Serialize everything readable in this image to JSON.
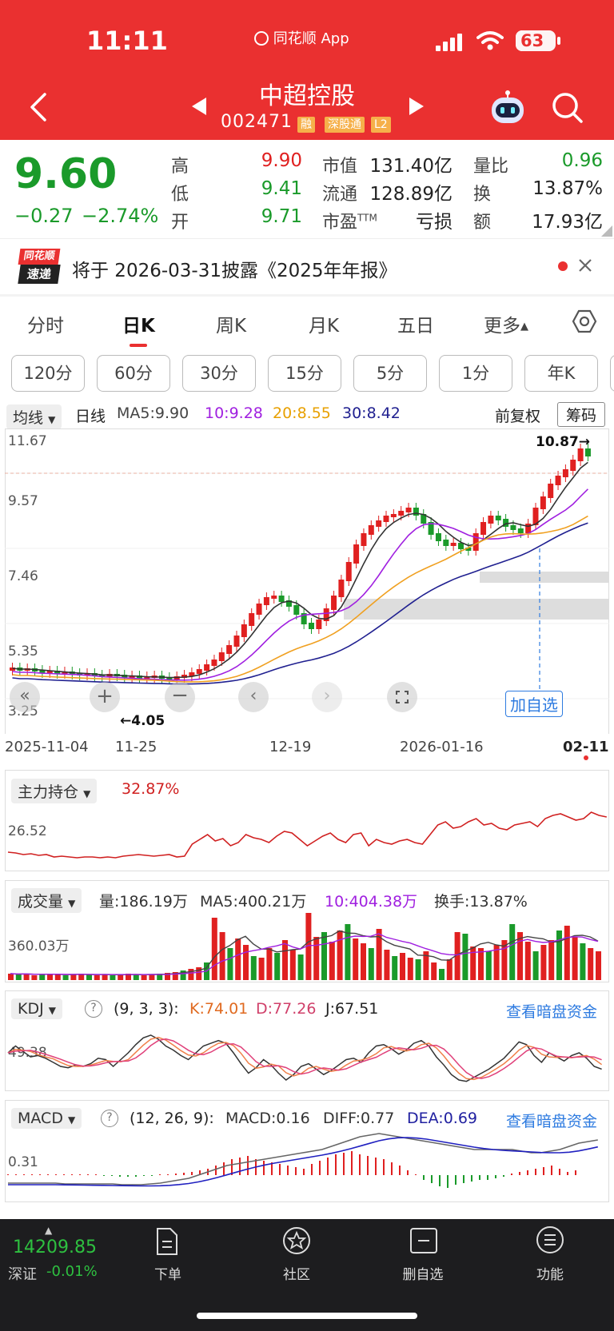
{
  "status_bar": {
    "time": "11:11",
    "app_label": "同花顺 App",
    "battery": "63"
  },
  "header": {
    "stock_name": "中超控股",
    "stock_code": "002471",
    "tags": [
      "融",
      "深股通",
      "L2"
    ]
  },
  "quote": {
    "price": "9.60",
    "change": "−0.27",
    "change_pct": "−2.74%",
    "high_label": "高",
    "high": "9.90",
    "low_label": "低",
    "low": "9.41",
    "open_label": "开",
    "open": "9.71",
    "mktcap_label": "市值",
    "mktcap": "131.40亿",
    "float_label": "流通",
    "float": "128.89亿",
    "pe_label": "市盈",
    "pe_sup": "TTM",
    "pe": "亏损",
    "volratio_label": "量比",
    "volratio": "0.96",
    "turnover_label": "换",
    "turnover": "13.87%",
    "amount_label": "额",
    "amount": "17.93亿"
  },
  "notice": {
    "logo_top": "同花顺",
    "logo_bottom": "速递",
    "text": "将于 2026-03-31披露《2025年年报》"
  },
  "tabs": [
    "分时",
    "日K",
    "周K",
    "月K",
    "五日",
    "更多"
  ],
  "intervals": [
    "120分",
    "60分",
    "30分",
    "15分",
    "5分",
    "1分",
    "年K"
  ],
  "kline": {
    "indicator_select": "均线",
    "period": "日线",
    "ma5": "MA5:9.90",
    "ma10": "10:9.28",
    "ma20": "20:8.55",
    "ma30": "30:8.42",
    "adjust": "前复权",
    "chip_button": "筹码",
    "y_labels": [
      "11.67",
      "9.57",
      "7.46",
      "5.35",
      "3.25"
    ],
    "high_marker": "10.87→",
    "low_marker": "←4.05",
    "x_labels": [
      "2025-11-04",
      "11-25",
      "12-19",
      "2026-01-16",
      "02-11"
    ],
    "add_watch": "加自选",
    "colors": {
      "ma5": "#333333",
      "ma10": "#a020e0",
      "ma20": "#f0a020",
      "ma30": "#202090",
      "up": "#e02020",
      "down": "#1a9a2a"
    }
  },
  "main_position": {
    "label": "主力持仓",
    "value": "32.87%",
    "y_label": "26.52"
  },
  "volume": {
    "label": "成交量",
    "vol": "量:186.19万",
    "ma5": "MA5:400.21万",
    "ma10": "10:404.38万",
    "turnover": "换手:13.87%",
    "y_label": "360.03万"
  },
  "kdj": {
    "label": "KDJ",
    "params": "(9, 3, 3):",
    "k": "K:74.01",
    "d": "D:77.26",
    "j": "J:67.51",
    "link": "查看暗盘资金",
    "y_label": "49.38"
  },
  "macd": {
    "label": "MACD",
    "params": "(12, 26, 9):",
    "macd": "MACD:0.16",
    "diff": "DIFF:0.77",
    "dea": "DEA:0.69",
    "link": "查看暗盘资金",
    "y_label": "0.31"
  },
  "bottom": {
    "index_value": "14209.85",
    "index_name": "深证",
    "index_change": "-0.01%",
    "nav": [
      "下单",
      "社区",
      "删自选",
      "功能"
    ]
  }
}
